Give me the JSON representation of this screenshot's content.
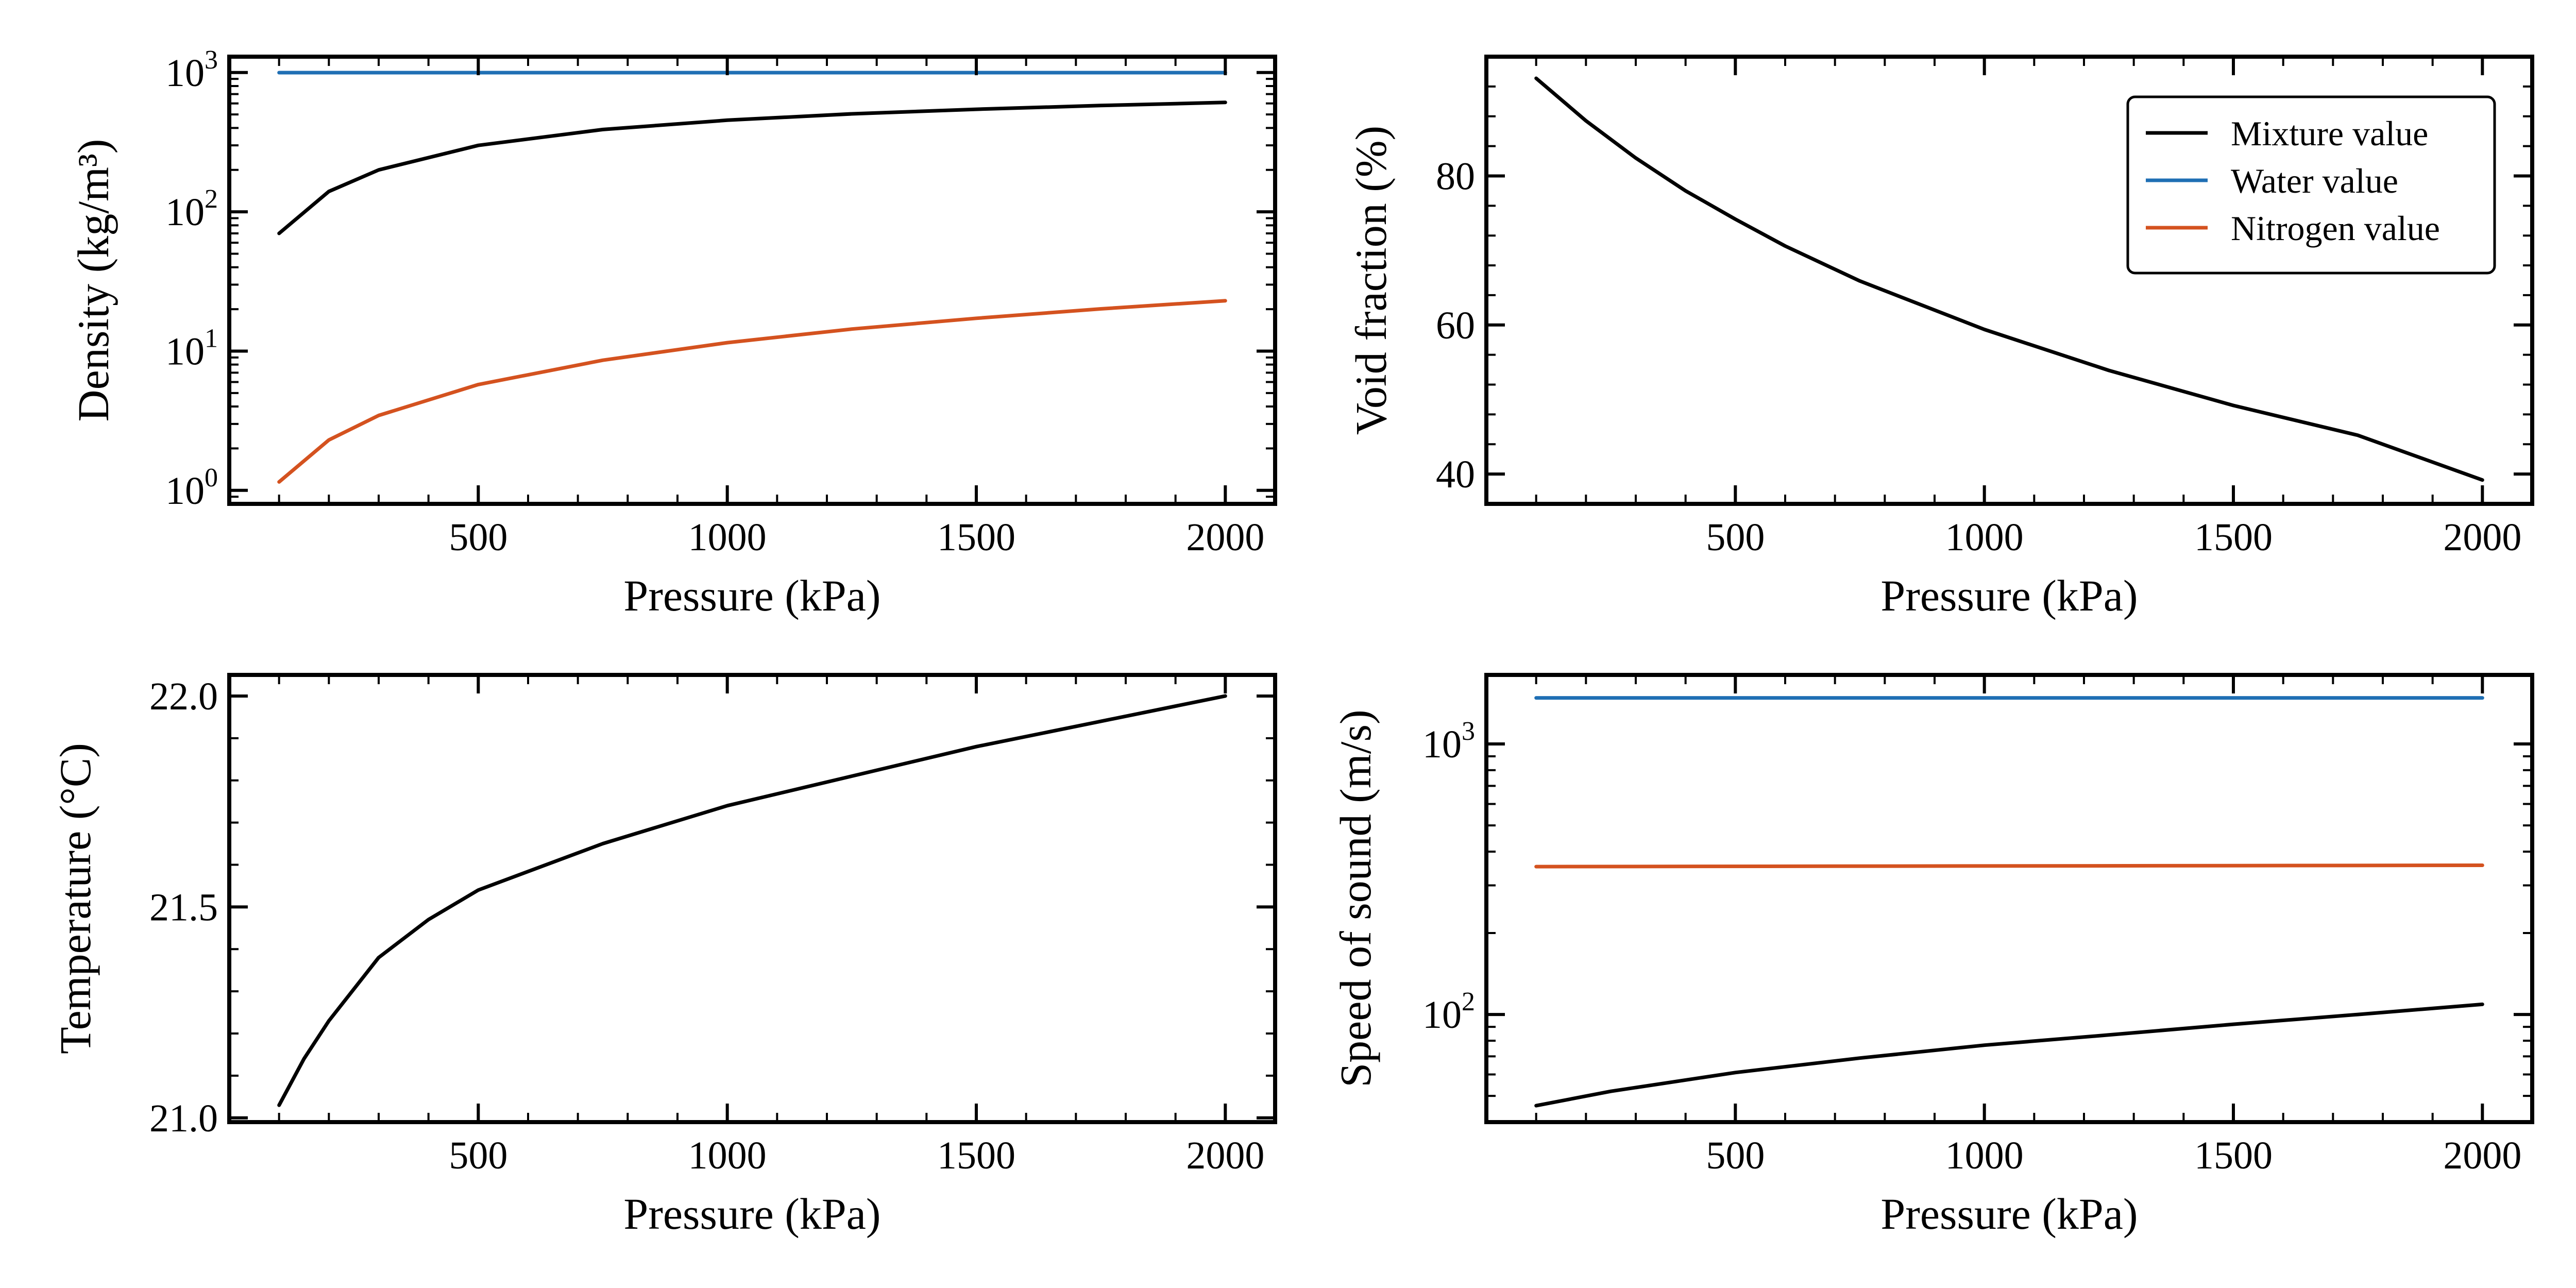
{
  "legend": {
    "entries": [
      "Mixture value",
      "Water value",
      "Nitrogen value"
    ],
    "placement": "top-right of void fraction panel"
  },
  "colors": {
    "mixture": "#000000",
    "water": "#1f6fb4",
    "nitrogen": "#d4521f"
  },
  "chart_data": [
    {
      "id": "density",
      "type": "line",
      "xlabel": "Pressure (kPa)",
      "ylabel": "Density (kg/m³)",
      "yscale": "log",
      "xlim": [
        0,
        2100
      ],
      "ylim": [
        0.8,
        1300
      ],
      "x_ticks": [
        500,
        1000,
        1500,
        2000
      ],
      "y_ticks": [
        1,
        10,
        100,
        1000
      ],
      "y_tick_labels": [
        {
          "base": "10",
          "exp": "0"
        },
        {
          "base": "10",
          "exp": "1"
        },
        {
          "base": "10",
          "exp": "2"
        },
        {
          "base": "10",
          "exp": "3"
        }
      ],
      "series": [
        {
          "name": "Mixture value",
          "color": "#000000",
          "x": [
            100,
            200,
            300,
            500,
            750,
            1000,
            1250,
            1500,
            1750,
            2000
          ],
          "y": [
            70,
            140,
            200,
            300,
            390,
            455,
            505,
            545,
            580,
            610
          ]
        },
        {
          "name": "Water value",
          "color": "#1f6fb4",
          "x": [
            100,
            2000
          ],
          "y": [
            998,
            998
          ]
        },
        {
          "name": "Nitrogen value",
          "color": "#d4521f",
          "x": [
            100,
            200,
            300,
            500,
            750,
            1000,
            1250,
            1500,
            1750,
            2000
          ],
          "y": [
            1.15,
            2.3,
            3.45,
            5.75,
            8.6,
            11.5,
            14.4,
            17.2,
            20.1,
            23
          ]
        }
      ]
    },
    {
      "id": "void_fraction",
      "type": "line",
      "xlabel": "Pressure (kPa)",
      "ylabel": "Void fraction (%)",
      "yscale": "linear",
      "xlim": [
        0,
        2100
      ],
      "ylim": [
        36,
        96
      ],
      "x_ticks": [
        500,
        1000,
        1500,
        2000
      ],
      "y_ticks": [
        40,
        60,
        80
      ],
      "series": [
        {
          "name": "Mixture value",
          "color": "#000000",
          "x": [
            100,
            200,
            300,
            400,
            500,
            600,
            750,
            1000,
            1250,
            1500,
            1750,
            2000
          ],
          "y": [
            93.1,
            87.4,
            82.4,
            78.0,
            74.2,
            70.6,
            65.9,
            59.4,
            53.9,
            49.2,
            45.2,
            39.2
          ]
        }
      ]
    },
    {
      "id": "temperature",
      "type": "line",
      "xlabel": "Pressure (kPa)",
      "ylabel": "Temperature (°C)",
      "yscale": "linear",
      "xlim": [
        0,
        2100
      ],
      "ylim": [
        20.99,
        22.05
      ],
      "x_ticks": [
        500,
        1000,
        1500,
        2000
      ],
      "y_ticks": [
        21.0,
        21.5,
        22.0
      ],
      "y_tick_labels": [
        "21.0",
        "21.5",
        "22.0"
      ],
      "series": [
        {
          "name": "Mixture value",
          "color": "#000000",
          "x": [
            100,
            150,
            200,
            300,
            400,
            500,
            750,
            1000,
            1250,
            1500,
            1750,
            2000
          ],
          "y": [
            21.03,
            21.14,
            21.23,
            21.38,
            21.47,
            21.54,
            21.65,
            21.74,
            21.81,
            21.88,
            21.94,
            22.0
          ]
        }
      ]
    },
    {
      "id": "speed_of_sound",
      "type": "line",
      "xlabel": "Pressure (kPa)",
      "ylabel": "Speed of sound (m/s)",
      "yscale": "log",
      "xlim": [
        0,
        2100
      ],
      "ylim": [
        40,
        1800
      ],
      "x_ticks": [
        500,
        1000,
        1500,
        2000
      ],
      "y_ticks": [
        100,
        1000
      ],
      "y_tick_labels": [
        {
          "base": "10",
          "exp": "2"
        },
        {
          "base": "10",
          "exp": "3"
        }
      ],
      "series": [
        {
          "name": "Mixture value",
          "color": "#000000",
          "x": [
            100,
            250,
            500,
            750,
            1000,
            1250,
            1500,
            1750,
            2000
          ],
          "y": [
            46,
            52,
            61,
            69,
            77,
            84,
            92,
            100,
            109
          ]
        },
        {
          "name": "Water value",
          "color": "#1f6fb4",
          "x": [
            100,
            2000
          ],
          "y": [
            1480,
            1480
          ]
        },
        {
          "name": "Nitrogen value",
          "color": "#d4521f",
          "x": [
            100,
            2000
          ],
          "y": [
            352,
            356
          ]
        }
      ]
    }
  ]
}
